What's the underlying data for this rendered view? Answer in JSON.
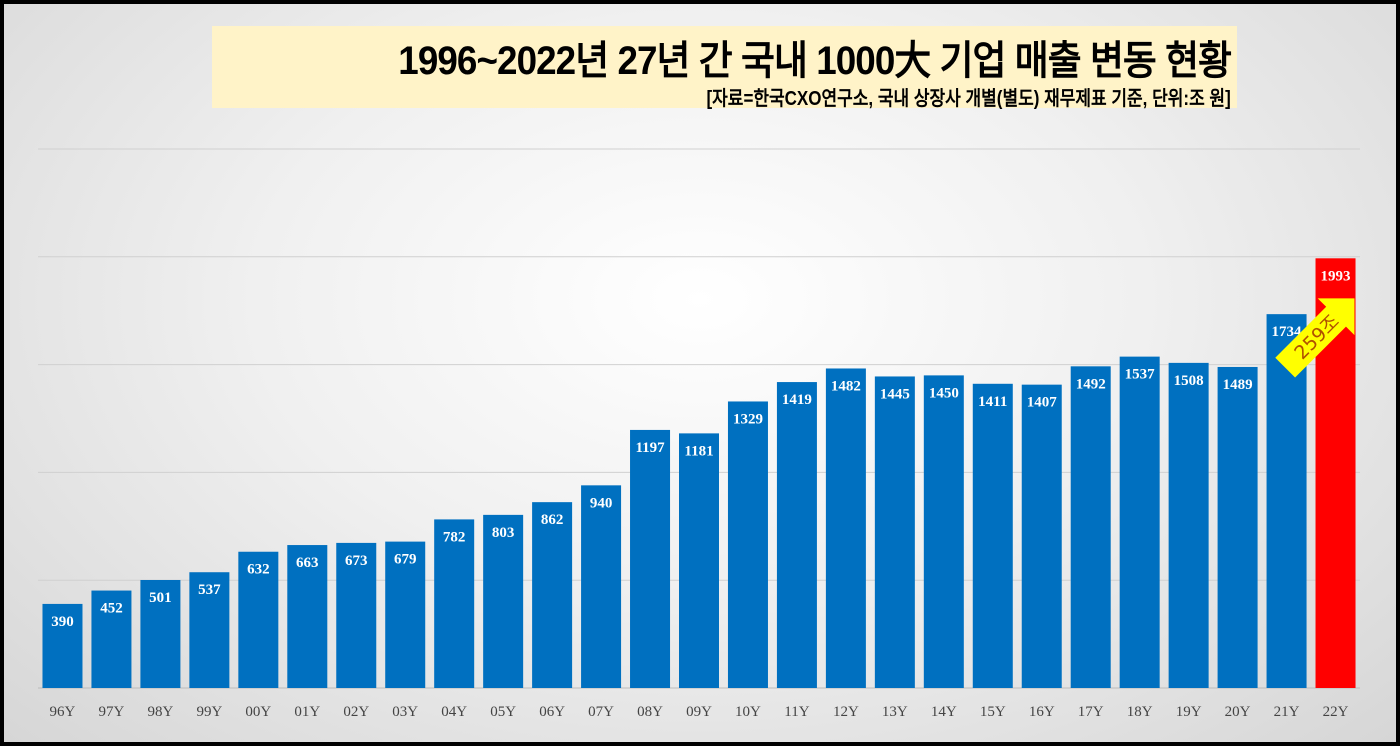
{
  "header": {
    "title": "1996~2022년 27년 간 국내 1000大 기업 매출 변동 현황",
    "subtitle": "[자료=한국CXO연구소, 국내 상장사 개별(별도) 재무제표 기준, 단위:조 원]"
  },
  "chart_data": {
    "type": "bar",
    "title": "1996~2022년 27년 간 국내 1000大 기업 매출 변동 현황",
    "subtitle": "[자료=한국CXO연구소, 국내 상장사 개별(별도) 재무제표 기준, 단위:조 원]",
    "categories": [
      "96Y",
      "97Y",
      "98Y",
      "99Y",
      "00Y",
      "01Y",
      "02Y",
      "03Y",
      "04Y",
      "05Y",
      "06Y",
      "07Y",
      "08Y",
      "09Y",
      "10Y",
      "11Y",
      "12Y",
      "13Y",
      "14Y",
      "15Y",
      "16Y",
      "17Y",
      "18Y",
      "19Y",
      "20Y",
      "21Y",
      "22Y"
    ],
    "values": [
      390,
      452,
      501,
      537,
      632,
      663,
      673,
      679,
      782,
      803,
      862,
      940,
      1197,
      1181,
      1329,
      1419,
      1482,
      1445,
      1450,
      1411,
      1407,
      1492,
      1537,
      1508,
      1489,
      1734,
      1993
    ],
    "ylim": [
      0,
      2500
    ],
    "grid": true,
    "colors": {
      "bar": "#0070c0",
      "highlight": "#ff0000",
      "arrow": "#ffff00"
    },
    "highlight_category": "22Y",
    "annotation": "259조"
  }
}
